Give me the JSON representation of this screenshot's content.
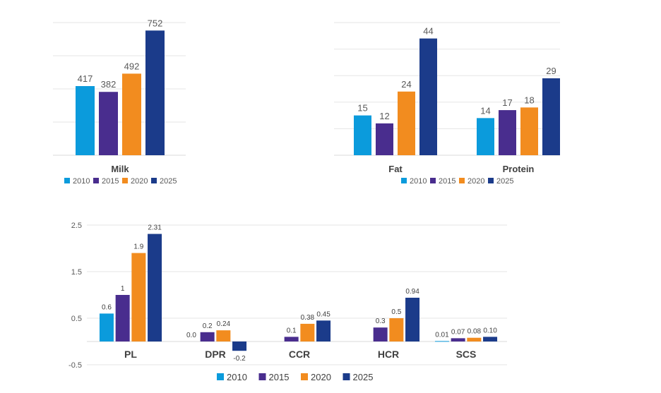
{
  "colors": {
    "2010": "#0b9bdc",
    "2015": "#492d8e",
    "2020": "#f28c1f",
    "2025": "#1b3b8a"
  },
  "chart_data": [
    {
      "id": "milk",
      "type": "bar",
      "categories": [
        "Milk"
      ],
      "series": [
        {
          "name": "2010",
          "values": [
            417
          ],
          "labels": [
            "417"
          ]
        },
        {
          "name": "2015",
          "values": [
            382
          ],
          "labels": [
            "382"
          ]
        },
        {
          "name": "2020",
          "values": [
            492
          ],
          "labels": [
            "492"
          ]
        },
        {
          "name": "2025",
          "values": [
            752
          ],
          "labels": [
            "752"
          ]
        }
      ],
      "ylim": [
        0,
        800
      ],
      "grid": true,
      "legend": "bottom"
    },
    {
      "id": "fat-protein",
      "type": "bar",
      "categories": [
        "Fat",
        "Protein"
      ],
      "series": [
        {
          "name": "2010",
          "values": [
            15,
            14
          ],
          "labels": [
            "15",
            "14"
          ]
        },
        {
          "name": "2015",
          "values": [
            12,
            17
          ],
          "labels": [
            "12",
            "17"
          ]
        },
        {
          "name": "2020",
          "values": [
            24,
            18
          ],
          "labels": [
            "24",
            "18"
          ]
        },
        {
          "name": "2025",
          "values": [
            44,
            29
          ],
          "labels": [
            "44",
            "29"
          ]
        }
      ],
      "ylim": [
        0,
        50
      ],
      "grid": true,
      "legend": "bottom"
    },
    {
      "id": "health",
      "type": "bar",
      "categories": [
        "PL",
        "DPR",
        "CCR",
        "HCR",
        "SCS"
      ],
      "series": [
        {
          "name": "2010",
          "values": [
            0.6,
            0.0,
            0.0,
            0.0,
            0.01
          ],
          "labels": [
            "0.6",
            "0.0",
            "",
            "",
            "0.01"
          ]
        },
        {
          "name": "2015",
          "values": [
            1,
            0.2,
            0.1,
            0.3,
            0.07
          ],
          "labels": [
            "1",
            "0.2",
            "0.1",
            "0.3",
            "0.07"
          ]
        },
        {
          "name": "2020",
          "values": [
            1.9,
            0.24,
            0.38,
            0.5,
            0.08
          ],
          "labels": [
            "1.9",
            "0.24",
            "0.38",
            "0.5",
            "0.08"
          ]
        },
        {
          "name": "2025",
          "values": [
            2.31,
            -0.2,
            0.45,
            0.94,
            0.1
          ],
          "labels": [
            "2.31",
            "-0.2",
            "0.45",
            "0.94",
            "0.10"
          ]
        }
      ],
      "yticks": [
        "2.5",
        "1.5",
        "0.5",
        "-0.5"
      ],
      "ylim": [
        -0.5,
        2.5
      ],
      "grid": true,
      "legend": "bottom"
    }
  ]
}
